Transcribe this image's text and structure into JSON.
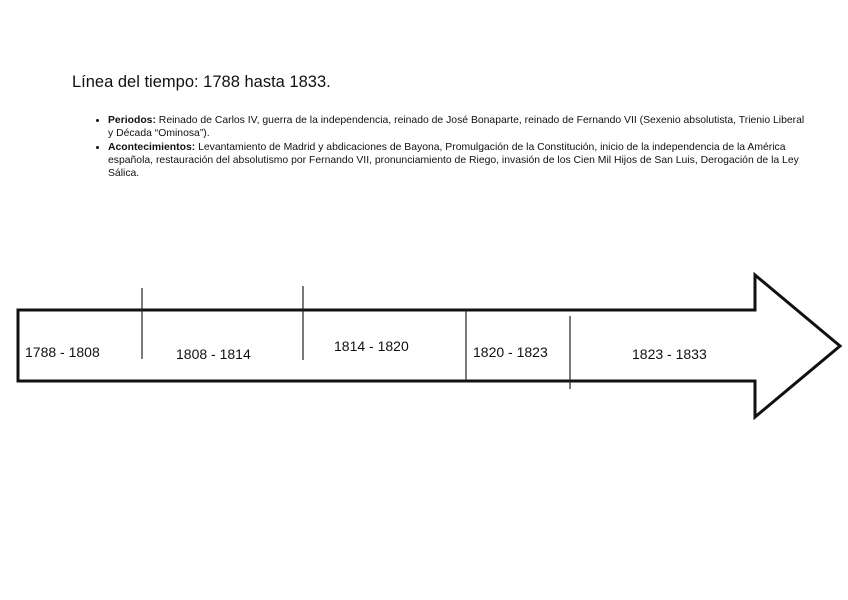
{
  "title": "Línea del tiempo: 1788 hasta 1833.",
  "bullets": [
    {
      "label": "Periodos:",
      "text": " Reinado de Carlos IV, guerra de la independencia, reinado de José Bonaparte, reinado de Fernando VII (Sexenio absolutista, Trienio Liberal y Década “Ominosa”)."
    },
    {
      "label": "Acontecimientos:",
      "text": " Levantamiento de Madrid y abdicaciones de Bayona, Promulgación de la Constitución, inicio de la independencia de la América española, restauración del absolutismo por Fernando VII, pronunciamiento de Riego, invasión de los Cien Mil Hijos de San Luis, Derogación de la Ley Sálica."
    }
  ],
  "timeline": {
    "periods": [
      "1788 - 1808",
      "1808 - 1814",
      "1814 - 1820",
      "1820 - 1823",
      "1823 - 1833"
    ]
  }
}
